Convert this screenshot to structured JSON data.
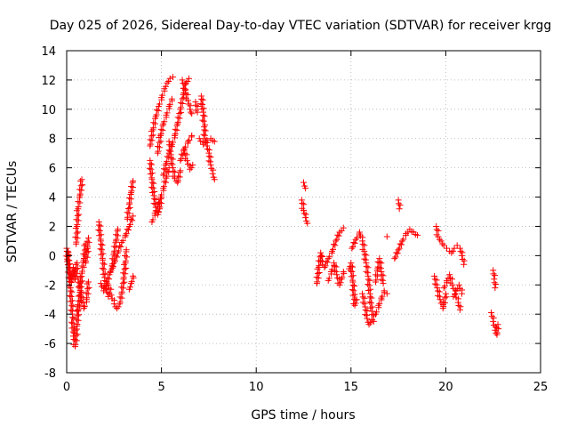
{
  "chart_data": {
    "type": "scatter",
    "title": "Day 025 of 2026, Sidereal Day-to-day VTEC variation (SDTVAR) for receiver krgg",
    "xlabel": "GPS time / hours",
    "ylabel": "SDTVAR / TECUs",
    "xlim": [
      0,
      25
    ],
    "ylim": [
      -8,
      14
    ],
    "xticks": [
      "0",
      "5",
      "10",
      "15",
      "20",
      "25"
    ],
    "yticks": [
      "-8",
      "-6",
      "-4",
      "-2",
      "0",
      "2",
      "4",
      "6",
      "8",
      "10",
      "12",
      "14"
    ],
    "grid": true,
    "marker": "+",
    "color": "#ff0000",
    "series": [
      {
        "name": "SDTVAR",
        "segments": [
          [
            [
              0.0,
              0.5
            ],
            [
              0.1,
              -0.6
            ],
            [
              0.2,
              -2.2
            ],
            [
              0.3,
              -4.0
            ],
            [
              0.35,
              -5.5
            ],
            [
              0.45,
              -6.2
            ],
            [
              0.55,
              -4.8
            ],
            [
              0.6,
              -3.5
            ]
          ],
          [
            [
              0.05,
              0.3
            ],
            [
              0.15,
              -1.0
            ],
            [
              0.25,
              -1.8
            ],
            [
              0.35,
              -0.8
            ],
            [
              0.45,
              -1.6
            ],
            [
              0.55,
              -0.5
            ]
          ],
          [
            [
              0.5,
              0.8
            ],
            [
              0.55,
              2.0
            ],
            [
              0.6,
              3.2
            ],
            [
              0.7,
              4.1
            ],
            [
              0.8,
              5.2
            ]
          ],
          [
            [
              0.6,
              -3.8
            ],
            [
              0.7,
              -2.5
            ],
            [
              0.8,
              -1.2
            ],
            [
              0.9,
              -0.3
            ],
            [
              1.0,
              0.8
            ]
          ],
          [
            [
              0.6,
              -1.6
            ],
            [
              0.75,
              -2.6
            ],
            [
              0.9,
              -3.6
            ],
            [
              1.05,
              -3.0
            ],
            [
              1.15,
              -1.8
            ]
          ],
          [
            [
              1.0,
              -0.5
            ],
            [
              1.1,
              0.5
            ],
            [
              1.15,
              1.2
            ]
          ],
          [
            [
              1.7,
              2.3
            ],
            [
              1.8,
              1.0
            ],
            [
              1.9,
              -0.3
            ],
            [
              2.0,
              -1.5
            ],
            [
              2.1,
              -2.3
            ],
            [
              2.2,
              -2.8
            ]
          ],
          [
            [
              1.8,
              -1.9
            ],
            [
              1.95,
              -2.4
            ],
            [
              2.1,
              -2.0
            ],
            [
              2.25,
              -1.3
            ],
            [
              2.4,
              -0.7
            ],
            [
              2.5,
              0.2
            ],
            [
              2.6,
              1.0
            ],
            [
              2.7,
              1.8
            ]
          ],
          [
            [
              2.2,
              -2.0
            ],
            [
              2.35,
              -2.7
            ],
            [
              2.5,
              -3.3
            ],
            [
              2.65,
              -3.6
            ],
            [
              2.8,
              -3.3
            ],
            [
              2.9,
              -2.6
            ],
            [
              3.0,
              -1.6
            ],
            [
              3.1,
              -0.5
            ],
            [
              3.15,
              0.4
            ]
          ],
          [
            [
              2.3,
              -1.1
            ],
            [
              2.5,
              -0.5
            ],
            [
              2.7,
              0.2
            ],
            [
              2.9,
              0.9
            ],
            [
              3.1,
              1.4
            ],
            [
              3.3,
              2.0
            ],
            [
              3.5,
              2.7
            ]
          ],
          [
            [
              3.2,
              2.5
            ],
            [
              3.3,
              3.5
            ],
            [
              3.4,
              4.3
            ],
            [
              3.5,
              5.1
            ]
          ],
          [
            [
              3.3,
              -2.3
            ],
            [
              3.4,
              -1.9
            ],
            [
              3.5,
              -1.4
            ]
          ],
          [
            [
              4.4,
              6.5
            ],
            [
              4.5,
              5.2
            ],
            [
              4.6,
              4.1
            ],
            [
              4.7,
              3.3
            ],
            [
              4.8,
              2.8
            ],
            [
              4.9,
              3.2
            ],
            [
              5.0,
              4.0
            ]
          ],
          [
            [
              4.4,
              7.5
            ],
            [
              4.55,
              8.6
            ],
            [
              4.7,
              9.5
            ],
            [
              4.85,
              10.2
            ],
            [
              5.0,
              10.8
            ],
            [
              5.15,
              11.4
            ],
            [
              5.3,
              11.8
            ],
            [
              5.45,
              12.1
            ],
            [
              5.6,
              12.2
            ]
          ],
          [
            [
              4.5,
              2.3
            ],
            [
              4.65,
              2.9
            ],
            [
              4.8,
              3.5
            ],
            [
              4.95,
              4.0
            ],
            [
              5.1,
              4.6
            ],
            [
              5.25,
              5.3
            ],
            [
              5.4,
              6.0
            ]
          ],
          [
            [
              4.8,
              7.0
            ],
            [
              4.95,
              8.2
            ],
            [
              5.1,
              9.0
            ],
            [
              5.25,
              9.6
            ],
            [
              5.4,
              10.2
            ],
            [
              5.55,
              10.7
            ]
          ],
          [
            [
              5.1,
              5.5
            ],
            [
              5.25,
              6.3
            ],
            [
              5.4,
              7.0
            ],
            [
              5.55,
              7.6
            ],
            [
              5.7,
              8.2
            ],
            [
              5.85,
              9.0
            ],
            [
              6.0,
              10.0
            ],
            [
              6.15,
              11.0
            ],
            [
              6.3,
              11.8
            ],
            [
              6.45,
              12.1
            ]
          ],
          [
            [
              5.4,
              7.8
            ],
            [
              5.5,
              6.9
            ],
            [
              5.6,
              6.0
            ],
            [
              5.7,
              5.3
            ],
            [
              5.85,
              5.0
            ],
            [
              6.0,
              5.8
            ]
          ],
          [
            [
              6.0,
              6.5
            ],
            [
              6.2,
              7.3
            ],
            [
              6.4,
              7.8
            ],
            [
              6.6,
              8.2
            ]
          ],
          [
            [
              6.1,
              12.0
            ],
            [
              6.25,
              11.3
            ],
            [
              6.4,
              10.6
            ],
            [
              6.5,
              10.0
            ],
            [
              6.6,
              9.7
            ]
          ],
          [
            [
              6.2,
              7.2
            ],
            [
              6.35,
              6.5
            ],
            [
              6.5,
              5.9
            ],
            [
              6.65,
              6.2
            ]
          ],
          [
            [
              6.8,
              10.5
            ],
            [
              6.9,
              9.8
            ]
          ],
          [
            [
              7.1,
              10.9
            ],
            [
              7.2,
              9.8
            ],
            [
              7.25,
              8.8
            ],
            [
              7.3,
              8.0
            ],
            [
              7.4,
              7.5
            ],
            [
              7.5,
              7.0
            ],
            [
              7.6,
              6.2
            ],
            [
              7.7,
              5.6
            ],
            [
              7.8,
              5.2
            ]
          ],
          [
            [
              7.0,
              8.0
            ],
            [
              7.2,
              7.6
            ],
            [
              7.4,
              7.9
            ],
            [
              7.6,
              8.0
            ],
            [
              7.8,
              7.8
            ]
          ],
          [
            [
              12.5,
              5.0
            ],
            [
              12.6,
              4.6
            ]
          ],
          [
            [
              12.4,
              3.8
            ],
            [
              12.5,
              3.1
            ],
            [
              12.6,
              2.6
            ],
            [
              12.7,
              2.2
            ]
          ],
          [
            [
              13.2,
              -1.9
            ],
            [
              13.3,
              -0.8
            ],
            [
              13.4,
              0.2
            ],
            [
              13.5,
              -0.6
            ]
          ],
          [
            [
              13.6,
              -0.8
            ],
            [
              13.8,
              -0.2
            ],
            [
              14.0,
              0.3
            ],
            [
              14.2,
              1.0
            ],
            [
              14.4,
              1.6
            ],
            [
              14.6,
              1.9
            ]
          ],
          [
            [
              13.8,
              -1.7
            ],
            [
              13.95,
              -1.1
            ],
            [
              14.1,
              -0.5
            ],
            [
              14.25,
              -1.3
            ],
            [
              14.4,
              -2.0
            ],
            [
              14.5,
              -1.6
            ],
            [
              14.6,
              -1.1
            ]
          ],
          [
            [
              14.9,
              -0.9
            ],
            [
              15.0,
              -0.5
            ],
            [
              15.1,
              -1.8
            ],
            [
              15.2,
              -3.4
            ],
            [
              15.3,
              -3.0
            ]
          ],
          [
            [
              15.05,
              0.5
            ],
            [
              15.25,
              1.1
            ],
            [
              15.45,
              1.6
            ],
            [
              15.6,
              1.0
            ],
            [
              15.7,
              0.3
            ],
            [
              15.8,
              -0.5
            ],
            [
              15.9,
              -1.4
            ],
            [
              16.0,
              -2.6
            ],
            [
              16.1,
              -3.8
            ],
            [
              16.2,
              -4.5
            ]
          ],
          [
            [
              15.6,
              -2.6
            ],
            [
              15.75,
              -3.5
            ],
            [
              15.85,
              -4.3
            ],
            [
              15.95,
              -4.7
            ],
            [
              16.1,
              -4.4
            ]
          ],
          [
            [
              16.3,
              -1.8
            ],
            [
              16.4,
              -0.9
            ],
            [
              16.5,
              -0.2
            ],
            [
              16.6,
              -1.1
            ],
            [
              16.7,
              -1.9
            ]
          ],
          [
            [
              16.3,
              -4.0
            ],
            [
              16.45,
              -3.4
            ],
            [
              16.6,
              -2.9
            ],
            [
              16.75,
              -2.4
            ],
            [
              16.9,
              -2.6
            ]
          ],
          [
            [
              17.3,
              -0.2
            ],
            [
              17.5,
              0.4
            ],
            [
              17.7,
              1.0
            ],
            [
              17.9,
              1.5
            ],
            [
              18.1,
              1.8
            ],
            [
              18.3,
              1.6
            ],
            [
              18.5,
              1.4
            ]
          ],
          [
            [
              16.9,
              1.3
            ]
          ],
          [
            [
              17.5,
              3.8
            ],
            [
              17.55,
              3.2
            ]
          ],
          [
            [
              19.4,
              -1.4
            ],
            [
              19.55,
              -2.2
            ],
            [
              19.7,
              -3.0
            ],
            [
              19.85,
              -3.6
            ],
            [
              20.0,
              -2.6
            ]
          ],
          [
            [
              19.5,
              2.0
            ],
            [
              19.6,
              1.3
            ],
            [
              19.75,
              1.0
            ],
            [
              19.9,
              0.7
            ],
            [
              20.05,
              0.5
            ],
            [
              20.2,
              0.3
            ]
          ],
          [
            [
              19.9,
              -2.2
            ],
            [
              20.05,
              -1.7
            ],
            [
              20.2,
              -1.3
            ],
            [
              20.35,
              -2.0
            ],
            [
              20.5,
              -2.6
            ],
            [
              20.65,
              -3.2
            ],
            [
              20.75,
              -3.7
            ]
          ],
          [
            [
              20.3,
              0.2
            ],
            [
              20.45,
              0.5
            ],
            [
              20.6,
              0.7
            ],
            [
              20.75,
              0.5
            ],
            [
              20.85,
              0.0
            ],
            [
              20.95,
              -0.6
            ]
          ],
          [
            [
              20.4,
              -2.8
            ],
            [
              20.55,
              -2.4
            ],
            [
              20.7,
              -2.0
            ],
            [
              20.85,
              -2.6
            ]
          ],
          [
            [
              22.5,
              -1.0
            ],
            [
              22.55,
              -1.6
            ],
            [
              22.6,
              -2.2
            ]
          ],
          [
            [
              22.4,
              -3.9
            ],
            [
              22.5,
              -4.5
            ],
            [
              22.6,
              -5.1
            ],
            [
              22.7,
              -5.4
            ],
            [
              22.75,
              -4.7
            ]
          ]
        ]
      }
    ]
  }
}
